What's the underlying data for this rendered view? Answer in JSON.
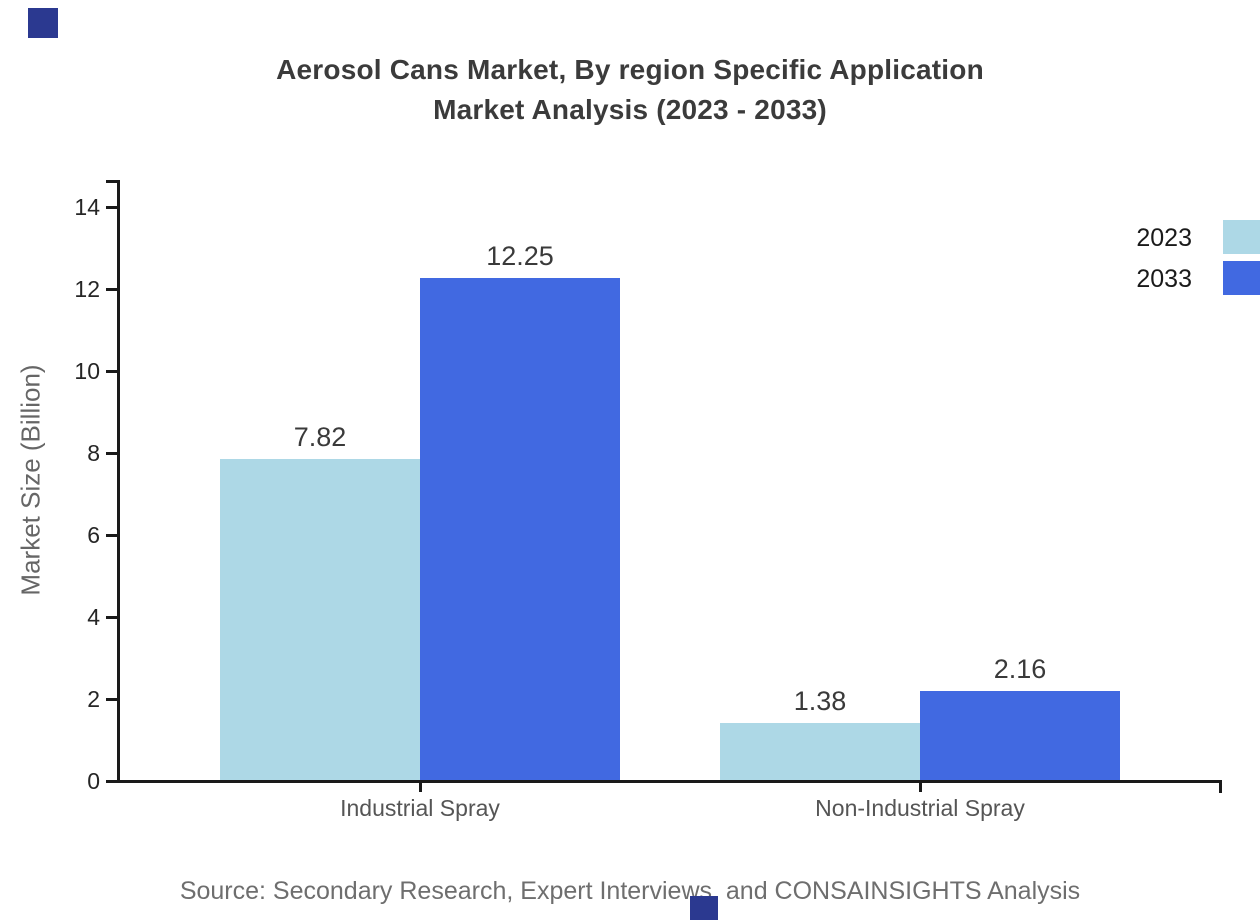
{
  "title": {
    "line1": "Aerosol Cans Market, By region Specific Application",
    "line2": "Market Analysis (2023 - 2033)"
  },
  "source_note": "Source: Secondary Research, Expert Interviews, and CONSAINSIGHTS Analysis",
  "chart_data": {
    "type": "bar",
    "title": "Aerosol Cans Market, By region Specific Application Market Analysis (2023 - 2033)",
    "categories": [
      "Industrial Spray",
      "Non-Industrial Spray"
    ],
    "series": [
      {
        "name": "2023",
        "color": "#ADD8E6",
        "values": [
          7.82,
          1.38
        ]
      },
      {
        "name": "2033",
        "color": "#4169E1",
        "values": [
          12.25,
          2.16
        ]
      }
    ],
    "xlabel": "",
    "ylabel": "Market Size (Billion)",
    "ylim": [
      0,
      14
    ],
    "yticks": [
      0,
      2,
      4,
      6,
      8,
      10,
      12,
      14
    ],
    "grid": false,
    "legend_position": "top-right-edge",
    "value_labels": true
  },
  "colors": {
    "title_text": "#3b3b3b",
    "value_label_text": "#3a3a3a",
    "tick_label_text": "#262626",
    "category_label_text": "#555555",
    "ylabel_text": "#666666",
    "source_text": "#6e6e6e",
    "legend_text": "#1a1a1a",
    "axis": "#1a1a1a",
    "brand_square": "#2b3990"
  }
}
